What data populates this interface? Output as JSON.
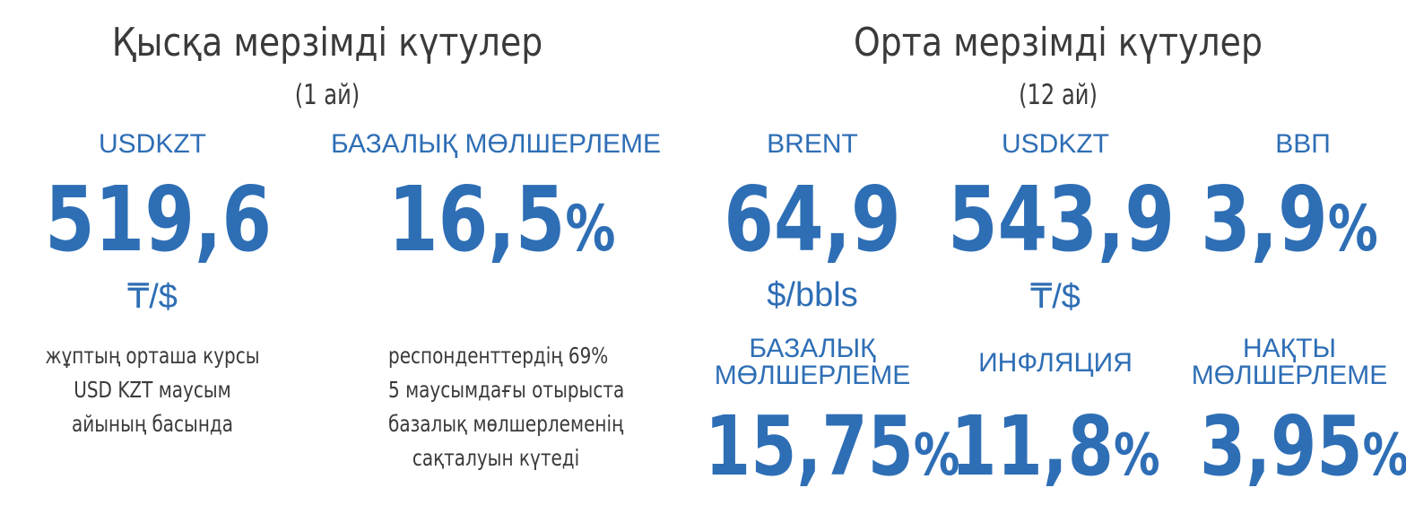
{
  "short_term": {
    "title": "Қысқа мерзімді күтулер",
    "period": "(1 ай)",
    "usdkzt": {
      "label": "USDKZT",
      "value": "519,6",
      "unit": "₸/$",
      "desc": [
        "жұптың орташа курсы",
        "USD KZT маусым",
        "айының басында"
      ]
    },
    "base_rate": {
      "label": "БАЗАЛЫҚ МӨЛШЕРЛЕМЕ",
      "value": "16,5",
      "suffix": "%",
      "desc": [
        "респонденттердің 69%",
        "5 маусымдағы отырыста",
        "базалық мөлшерлеменің",
        "сақталуын күтеді"
      ]
    }
  },
  "mid_term": {
    "title": "Орта мерзімді күтулер",
    "period": "(12 ай)",
    "brent": {
      "label": "BRENT",
      "value": "64,9",
      "unit": "$/bbls"
    },
    "usdkzt": {
      "label": "USDKZT",
      "value": "543,9",
      "unit": "₸/$"
    },
    "gdp": {
      "label": "ВВП",
      "value": "3,9",
      "suffix": "%"
    },
    "base_rate": {
      "label_line1": "БАЗАЛЫҚ",
      "label_line2": "МӨЛШЕРЛЕМЕ",
      "value": "15,75",
      "suffix": "%"
    },
    "inflation": {
      "label": "ИНФЛЯЦИЯ",
      "value": "11,8",
      "suffix": "%"
    },
    "real_rate": {
      "label_line1": "НАҚТЫ",
      "label_line2": "МӨЛШЕРЛЕМЕ",
      "value": "3,95",
      "suffix": "%"
    }
  },
  "colors": {
    "accent": "#2e6eb5",
    "text": "#3a3a3a"
  }
}
